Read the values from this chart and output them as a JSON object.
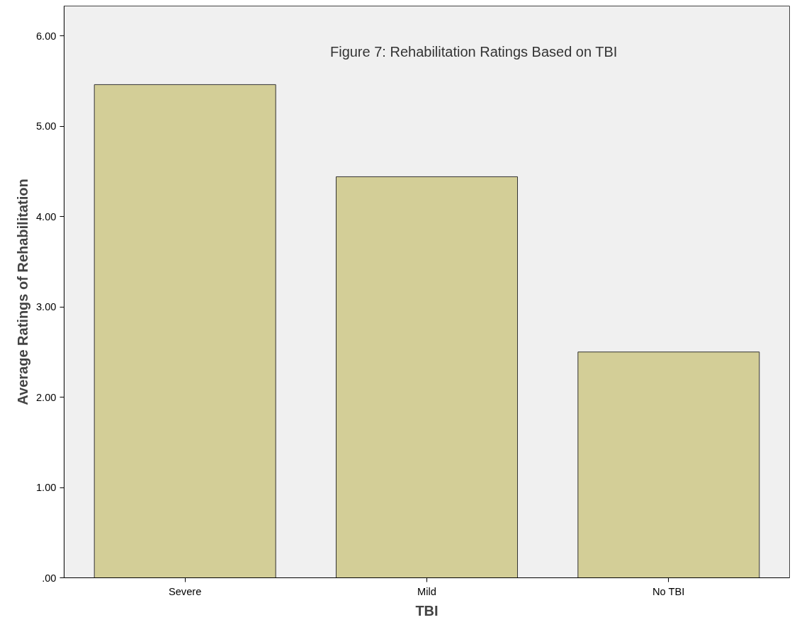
{
  "chart_data": {
    "type": "bar",
    "title": "Figure 7: Rehabilitation Ratings Based on TBI",
    "xlabel": "TBI",
    "ylabel": "Average Ratings of Rehabilitation",
    "categories": [
      "Severe",
      "Mild",
      "No TBI"
    ],
    "values": [
      5.46,
      4.44,
      2.5
    ],
    "color": "#d3ce97",
    "ylim": [
      0,
      6.33
    ],
    "yticks": [
      {
        "value": 0,
        "label": ".00"
      },
      {
        "value": 1,
        "label": "1.00"
      },
      {
        "value": 2,
        "label": "2.00"
      },
      {
        "value": 3,
        "label": "3.00"
      },
      {
        "value": 4,
        "label": "4.00"
      },
      {
        "value": 5,
        "label": "5.00"
      },
      {
        "value": 6,
        "label": "6.00"
      }
    ],
    "grid": false
  }
}
